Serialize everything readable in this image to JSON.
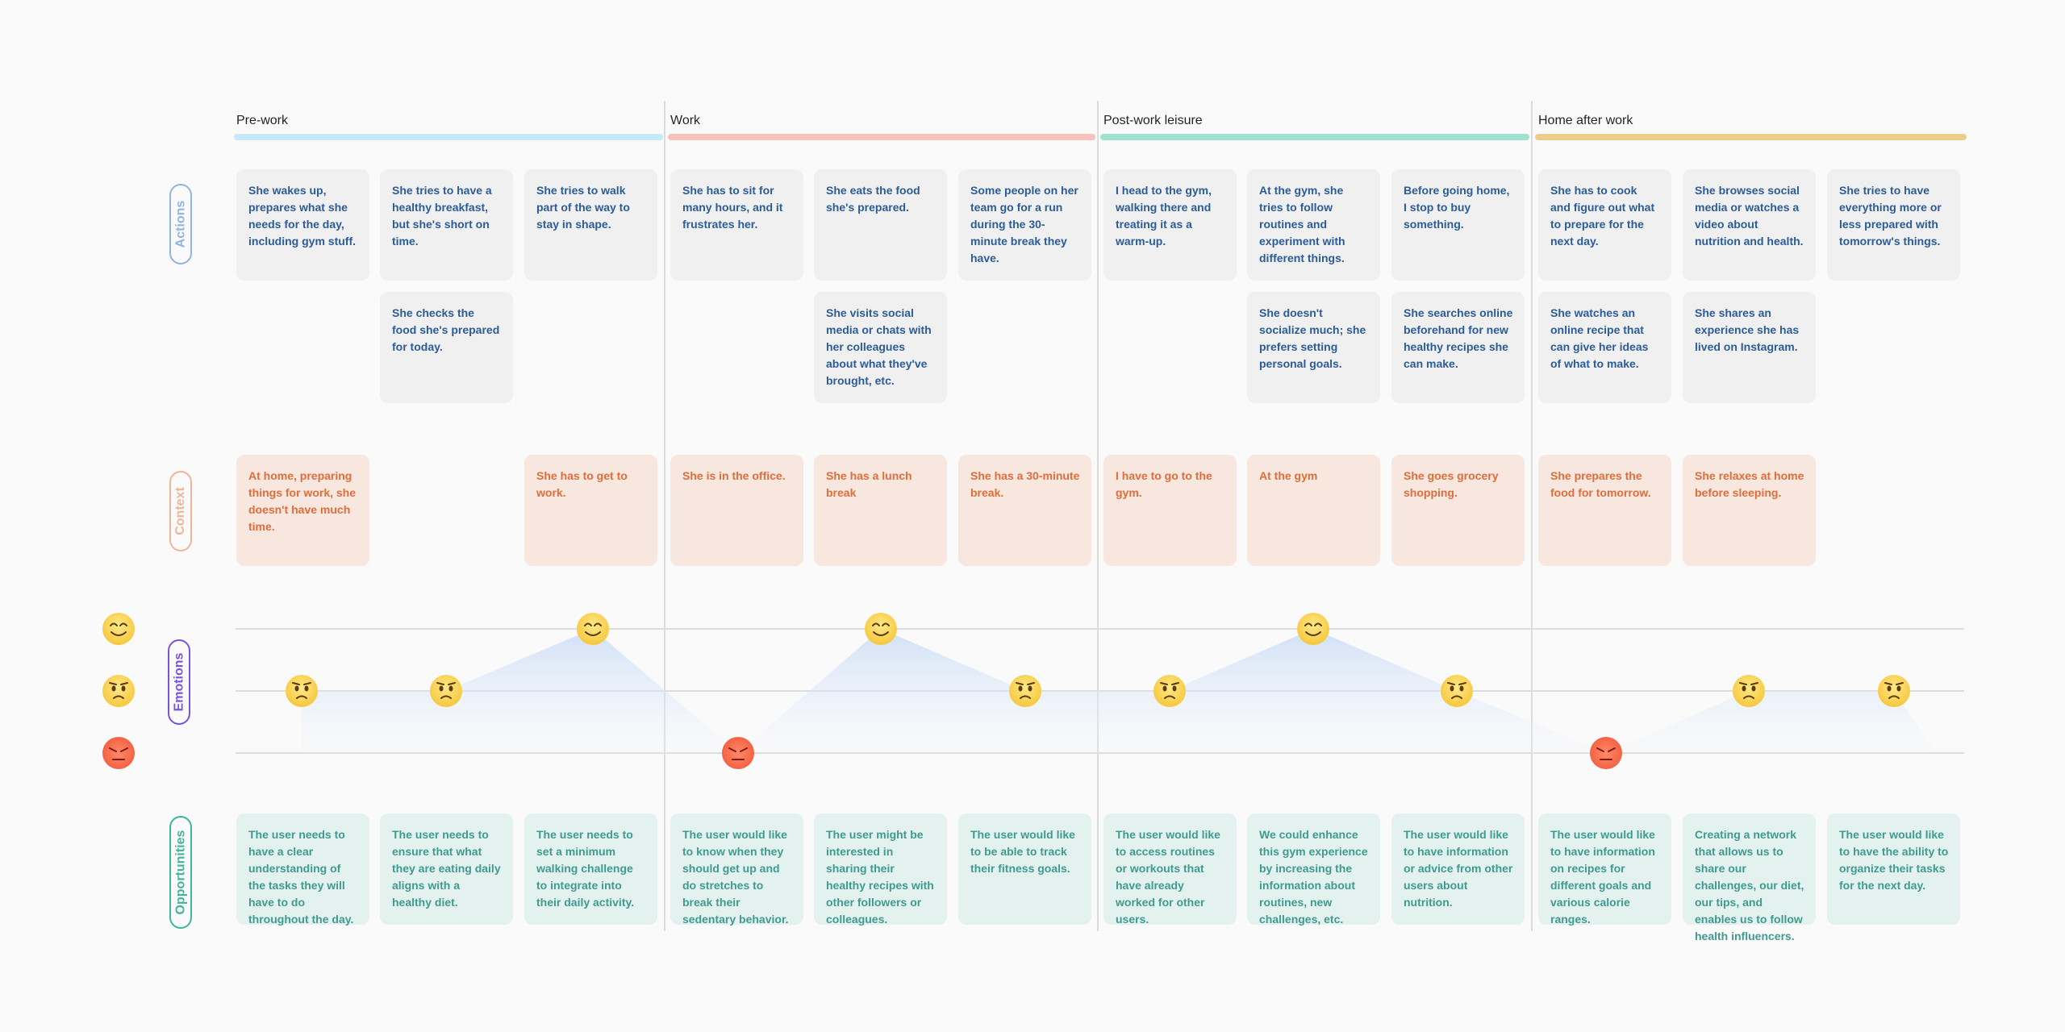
{
  "phases": [
    {
      "title": "Pre-work",
      "color": "#c7e8f8"
    },
    {
      "title": "Work",
      "color": "#f7c2bb"
    },
    {
      "title": "Post-work leisure",
      "color": "#9fe2d0"
    },
    {
      "title": "Home after work",
      "color": "#e9ce8c"
    }
  ],
  "row_labels": {
    "actions": "Actions",
    "context": "Context",
    "emotions": "Emotions",
    "opportunities": "Opportunities"
  },
  "actions_row1": [
    "She wakes up, prepares what she needs for the day, including gym stuff.",
    "She tries to have a healthy breakfast, but she's short on time.",
    "She tries to walk part of the way to stay in shape.",
    "She has to sit for many hours, and it frustrates her.",
    "She eats the food she's prepared.",
    "Some people on her team go for a run during the 30-minute break they have.",
    "I head to the gym, walking there and treating it as a warm-up.",
    "At the gym, she tries to follow routines and experiment with different things.",
    "Before going home, I stop to buy something.",
    "She has to cook and figure out what to prepare for the next day.",
    "She browses social media or watches a video about nutrition and health.",
    "She tries to have everything more or less prepared with tomorrow's things."
  ],
  "actions_row2": [
    {
      "col": 1,
      "text": "She checks the food she's prepared for today."
    },
    {
      "col": 4,
      "text": "She visits social media or chats with her colleagues about what they've brought, etc."
    },
    {
      "col": 7,
      "text": "She doesn't socialize much; she prefers setting personal goals."
    },
    {
      "col": 8,
      "text": "She searches online beforehand for new healthy recipes she can make."
    },
    {
      "col": 9,
      "text": "She watches an online recipe that can give her ideas of what to make."
    },
    {
      "col": 10,
      "text": "She shares an experience she has lived on Instagram."
    }
  ],
  "context": [
    {
      "col": 0,
      "text": "At home, preparing things for work, she doesn't have much time."
    },
    {
      "col": 2,
      "text": "She has to get to work."
    },
    {
      "col": 3,
      "text": "She is in the office."
    },
    {
      "col": 4,
      "text": "She has a lunch break"
    },
    {
      "col": 5,
      "text": "She has a 30-minute break."
    },
    {
      "col": 6,
      "text": "I have to go to the gym."
    },
    {
      "col": 7,
      "text": "At the gym"
    },
    {
      "col": 8,
      "text": "She goes grocery shopping."
    },
    {
      "col": 9,
      "text": "She prepares the food for tomorrow."
    },
    {
      "col": 10,
      "text": "She relaxes at home before sleeping."
    }
  ],
  "emotions": {
    "levels": [
      "happy",
      "neutral-sad",
      "angry"
    ],
    "sequence": [
      "neutral-sad",
      "neutral-sad",
      "happy",
      "angry",
      "happy",
      "neutral-sad",
      "neutral-sad",
      "happy",
      "neutral-sad",
      "angry",
      "neutral-sad",
      "neutral-sad"
    ]
  },
  "opportunities": [
    "The user needs to have a clear understanding of the tasks they will have to do throughout the day.",
    "The user needs to ensure that what they are eating daily aligns with a healthy diet.",
    "The user needs to set a minimum walking challenge to integrate into their daily activity.",
    "The user would like to know when they should get up and do stretches to break their sedentary behavior.",
    "The user might be interested in sharing their healthy recipes with other followers or colleagues.",
    "The user would like to be able to track their fitness goals.",
    "The user would like to access routines or workouts that have already worked for other users.",
    "We could enhance this gym experience by increasing the information about routines, new challenges, etc.",
    "The user would like to have information or advice from other users about nutrition.",
    "The user would like to have information on recipes for different goals and various calorie ranges.",
    "Creating a network that allows us to share our challenges, our diet, our tips, and enables us to follow health influencers.",
    "The user would like to have the ability to organize their tasks for the next day."
  ]
}
